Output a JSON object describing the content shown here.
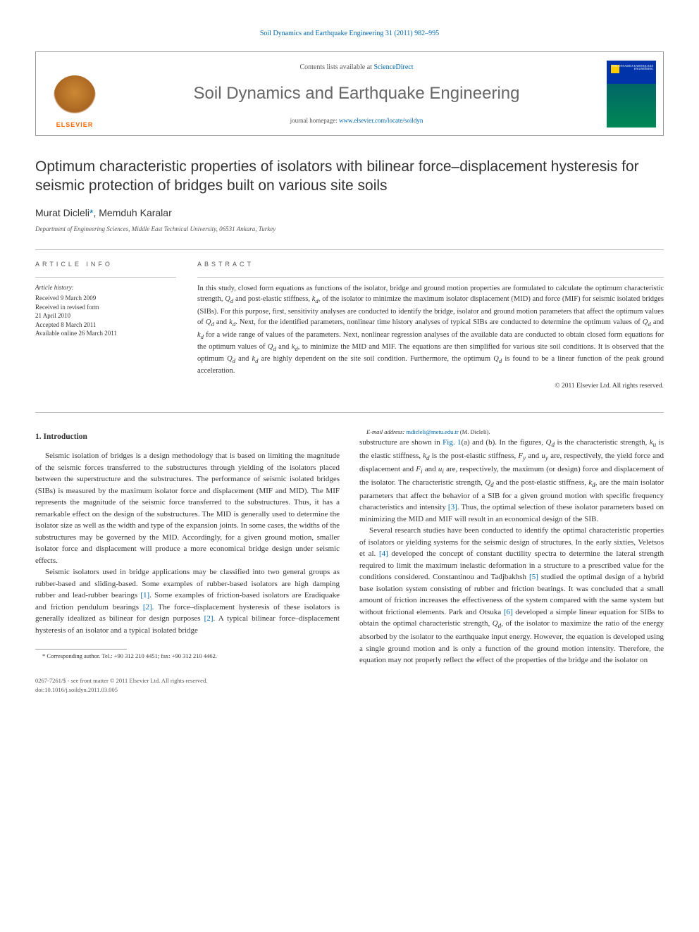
{
  "colors": {
    "link": "#0066aa",
    "text": "#333333",
    "muted": "#555555",
    "rule": "#bbbbbb",
    "elsevier": "#ff6600",
    "journal_title": "#666666"
  },
  "journal_ref": {
    "prefix": "Soil Dynamics and Earthquake Engineering 31 (2011) 982–995",
    "link_label": "Soil Dynamics and Earthquake Engineering"
  },
  "header": {
    "contents_prefix": "Contents lists available at ",
    "contents_link": "ScienceDirect",
    "journal_title": "Soil Dynamics and Earthquake Engineering",
    "homepage_prefix": "journal homepage: ",
    "homepage_url": "www.elsevier.com/locate/soildyn",
    "elsevier_label": "ELSEVIER",
    "cover_text": "SOIL\nDYNAMICS\nEARTHQUAKE\nENGINEERING"
  },
  "article": {
    "title": "Optimum characteristic properties of isolators with bilinear force–displacement hysteresis for seismic protection of bridges built on various site soils",
    "authors_html": "Murat Dicleli<a class='corr' href='#'>*</a>, Memduh Karalar",
    "affiliation": "Department of Engineering Sciences, Middle East Technical University, 06531 Ankara, Turkey"
  },
  "info": {
    "heading": "ARTICLE INFO",
    "history_label": "Article history:",
    "history": [
      "Received 9 March 2009",
      "Received in revised form",
      "21 April 2010",
      "Accepted 8 March 2011",
      "Available online 26 March 2011"
    ]
  },
  "abstract": {
    "heading": "ABSTRACT",
    "text_html": "In this study, closed form equations as functions of the isolator, bridge and ground motion properties are formulated to calculate the optimum characteristic strength, <i>Q<sub>d</sub></i> and post-elastic stiffness, <i>k<sub>d</sub></i>, of the isolator to minimize the maximum isolator displacement (MID) and force (MIF) for seismic isolated bridges (SIBs). For this purpose, first, sensitivity analyses are conducted to identify the bridge, isolator and ground motion parameters that affect the optimum values of <i>Q<sub>d</sub></i> and <i>k<sub>d</sub></i>. Next, for the identified parameters, nonlinear time history analyses of typical SIBs are conducted to determine the optimum values of <i>Q<sub>d</sub></i> and <i>k<sub>d</sub></i> for a wide range of values of the parameters. Next, nonlinear regression analyses of the available data are conducted to obtain closed form equations for the optimum values of <i>Q<sub>d</sub></i> and <i>k<sub>d</sub></i>, to minimize the MID and MIF. The equations are then simplified for various site soil conditions. It is observed that the optimum <i>Q<sub>d</sub></i> and <i>k<sub>d</sub></i> are highly dependent on the site soil condition. Furthermore, the optimum <i>Q<sub>d</sub></i> is found to be a linear function of the peak ground acceleration.",
    "copyright": "© 2011 Elsevier Ltd. All rights reserved."
  },
  "body": {
    "section1_heading": "1. Introduction",
    "p1": "Seismic isolation of bridges is a design methodology that is based on limiting the magnitude of the seismic forces transferred to the substructures through yielding of the isolators placed between the superstructure and the substructures. The performance of seismic isolated bridges (SIBs) is measured by the maximum isolator force and displacement (MIF and MID). The MIF represents the magnitude of the seismic force transferred to the substructures. Thus, it has a remarkable effect on the design of the substructures. The MID is generally used to determine the isolator size as well as the width and type of the expansion joints. In some cases, the widths of the substructures may be governed by the MID. Accordingly, for a given ground motion, smaller isolator force and displacement will produce a more economical bridge design under seismic effects.",
    "p2_html": "Seismic isolators used in bridge applications may be classified into two general groups as rubber-based and sliding-based. Some examples of rubber-based isolators are high damping rubber and lead-rubber bearings <a class='ref' href='#'>[1]</a>. Some examples of friction-based isolators are Eradiquake and friction pendulum bearings <a class='ref' href='#'>[2]</a>. The force–displacement hysteresis of these isolators is generally idealized as bilinear for design purposes <a class='ref' href='#'>[2]</a>. A typical bilinear force–displacement hysteresis of an isolator and a typical isolated bridge",
    "p3_html": "substructure are shown in <a class='ref' href='#'>Fig. 1</a>(a) and (b). In the figures, <i>Q<sub>d</sub></i> is the characteristic strength, <i>k<sub>u</sub></i> is the elastic stiffness, <i>k<sub>d</sub></i> is the post-elastic stiffness, <i>F<sub>y</sub></i> and <i>u<sub>y</sub></i> are, respectively, the yield force and displacement and <i>F<sub>i</sub></i> and <i>u<sub>i</sub></i> are, respectively, the maximum (or design) force and displacement of the isolator. The characteristic strength, <i>Q<sub>d</sub></i> and the post-elastic stiffness, <i>k<sub>d</sub></i>, are the main isolator parameters that affect the behavior of a SIB for a given ground motion with specific frequency characteristics and intensity <a class='ref' href='#'>[3]</a>. Thus, the optimal selection of these isolator parameters based on minimizing the MID and MIF will result in an economical design of the SIB.",
    "p4_html": "Several research studies have been conducted to identify the optimal characteristic properties of isolators or yielding systems for the seismic design of structures. In the early sixties, Veletsos et al. <a class='ref' href='#'>[4]</a> developed the concept of constant ductility spectra to determine the lateral strength required to limit the maximum inelastic deformation in a structure to a prescribed value for the conditions considered. Constantinou and Tadjbakhsh <a class='ref' href='#'>[5]</a> studied the optimal design of a hybrid base isolation system consisting of rubber and friction bearings. It was concluded that a small amount of friction increases the effectiveness of the system compared with the same system but without frictional elements. Park and Otsuka <a class='ref' href='#'>[6]</a> developed a simple linear equation for SIBs to obtain the optimal characteristic strength, <i>Q<sub>d</sub></i>, of the isolator to maximize the ratio of the energy absorbed by the isolator to the earthquake input energy. However, the equation is developed using a single ground motion and is only a function of the ground motion intensity. Therefore, the equation may not properly reflect the effect of the properties of the bridge and the isolator on"
  },
  "footnote": {
    "corr_html": "* Corresponding author. Tel.: +90 312 210 4451; fax: +90 312 210 4462.",
    "email_label": "E-mail address:",
    "email": "mdicleli@metu.edu.tr",
    "email_who": "(M. Dicleli)."
  },
  "footer": {
    "left_line1": "0267-7261/$ - see front matter © 2011 Elsevier Ltd. All rights reserved.",
    "left_line2": "doi:10.1016/j.soildyn.2011.03.005"
  }
}
